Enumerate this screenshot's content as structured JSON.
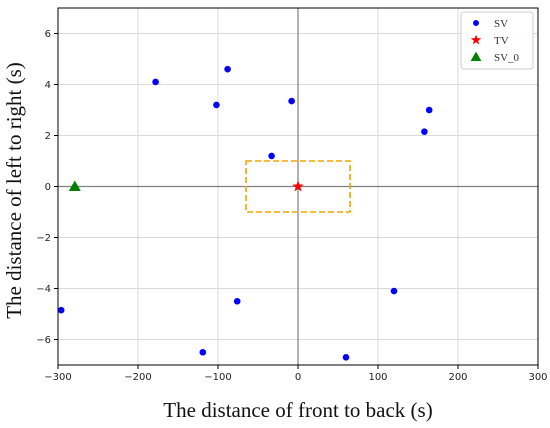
{
  "chart_data": {
    "type": "scatter",
    "xlabel": "The distance of front to back (s)",
    "ylabel": "The distance of left to right (s)",
    "xlim": [
      -300,
      300
    ],
    "ylim": [
      -7,
      7
    ],
    "xticks": [
      -300,
      -200,
      -100,
      0,
      100,
      200,
      300
    ],
    "yticks": [
      -6,
      -4,
      -2,
      0,
      2,
      4,
      6
    ],
    "x_tick_labels": [
      "−300",
      "−200",
      "−100",
      "0",
      "100",
      "200",
      "300"
    ],
    "y_tick_labels": [
      "−6",
      "−4",
      "−2",
      "0",
      "2",
      "4",
      "6"
    ],
    "grid": true,
    "legend_position": "top-right",
    "series": [
      {
        "name": "SV",
        "marker": "circle",
        "color": "#0000ff",
        "points": [
          {
            "x": -178,
            "y": 4.1
          },
          {
            "x": -88,
            "y": 4.6
          },
          {
            "x": -102,
            "y": 3.2
          },
          {
            "x": -8,
            "y": 3.35
          },
          {
            "x": 164,
            "y": 3.0
          },
          {
            "x": 158,
            "y": 2.15
          },
          {
            "x": -33,
            "y": 1.2
          },
          {
            "x": -296,
            "y": -4.85
          },
          {
            "x": -76,
            "y": -4.5
          },
          {
            "x": 120,
            "y": -4.1
          },
          {
            "x": -119,
            "y": -6.5
          },
          {
            "x": 60,
            "y": -6.7
          }
        ]
      },
      {
        "name": "TV",
        "marker": "star",
        "color": "#ff0000",
        "points": [
          {
            "x": 0,
            "y": 0
          }
        ]
      },
      {
        "name": "SV_0",
        "marker": "triangle",
        "color": "#008000",
        "points": [
          {
            "x": -279,
            "y": 0
          }
        ]
      }
    ],
    "annotations": [
      {
        "type": "dashed_rectangle",
        "color": "#f0a500",
        "x_range": [
          -65,
          65
        ],
        "y_range": [
          -1,
          1
        ]
      }
    ],
    "reference_lines": [
      {
        "axis": "x",
        "value": 0,
        "color": "#808080"
      },
      {
        "axis": "y",
        "value": 0,
        "color": "#808080"
      }
    ]
  }
}
